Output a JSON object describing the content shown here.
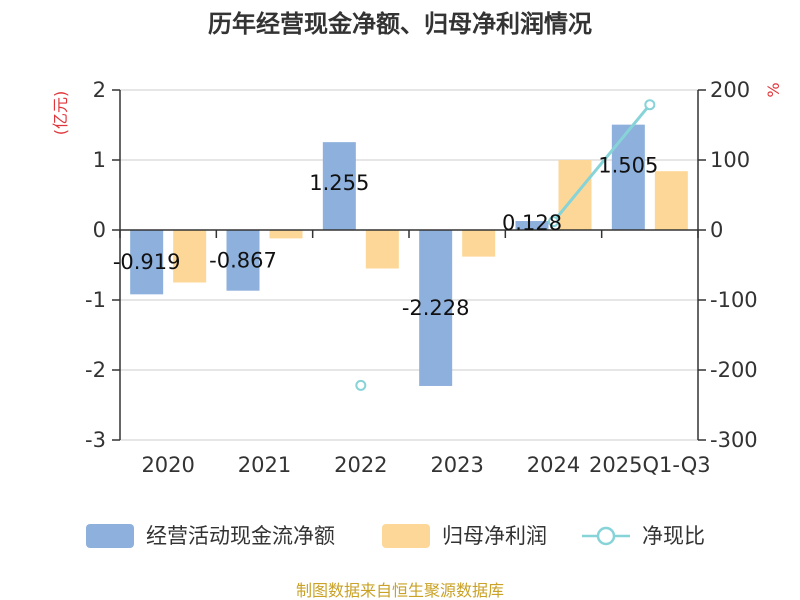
{
  "chart_data": {
    "type": "bar",
    "title": "历年经营现金净额、归母净利润情况",
    "categories": [
      "2020",
      "2021",
      "2022",
      "2023",
      "2024",
      "2025Q1-Q3"
    ],
    "left_axis": {
      "unit": "(亿元)",
      "ylim": [
        -3,
        2
      ],
      "ticks": [
        "2",
        "1",
        "0",
        "-1",
        "-2",
        "-3"
      ]
    },
    "right_axis": {
      "unit": "%",
      "ylim": [
        -300,
        200
      ],
      "ticks": [
        "200",
        "100",
        "0",
        "-100",
        "-200",
        "-300"
      ]
    },
    "series": [
      {
        "name": "经营活动现金流净额",
        "type": "bar",
        "axis": "left",
        "color": "#8eb0dc",
        "values": [
          -0.919,
          -0.867,
          1.255,
          -2.228,
          0.128,
          1.505
        ],
        "labels": [
          "-0.919",
          "-0.867",
          "1.255",
          "-2.228",
          "0.128",
          "1.505"
        ]
      },
      {
        "name": "归母净利润",
        "type": "bar",
        "axis": "left",
        "color": "#fdd797",
        "values": [
          -0.75,
          -0.12,
          -0.55,
          -0.38,
          1.0,
          0.84
        ]
      },
      {
        "name": "净现比",
        "type": "line",
        "axis": "right",
        "color": "#86d3d8",
        "values": [
          null,
          null,
          -222,
          null,
          12,
          179
        ]
      }
    ],
    "grid": true,
    "legend_position": "bottom"
  },
  "colors": {
    "axis_unit": "#e0363b",
    "source": "#c9a227",
    "gridline": "#cccccc"
  },
  "source_note": "制图数据来自恒生聚源数据库"
}
